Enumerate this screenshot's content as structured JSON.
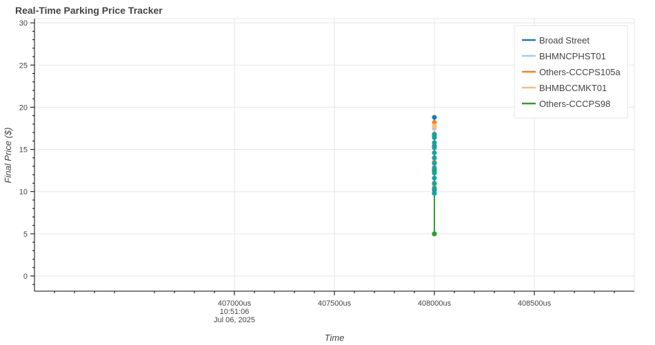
{
  "chart_data": {
    "type": "line",
    "title": "Real-Time Parking Price Tracker",
    "xlabel": "Time",
    "ylabel": "Final Price ($)",
    "xlim": [
      406000,
      409000
    ],
    "ylim": [
      -1.8,
      30.5
    ],
    "grid": true,
    "legend_position": "top-right",
    "x_ticks": [
      {
        "value": 407000,
        "lines": [
          "407000us",
          "10:51:06",
          "Jul 06, 2025"
        ]
      },
      {
        "value": 407500,
        "lines": [
          "407500us"
        ]
      },
      {
        "value": 408000,
        "lines": [
          "408000us"
        ]
      },
      {
        "value": 408500,
        "lines": [
          "408500us"
        ]
      }
    ],
    "y_ticks": [
      0,
      5,
      10,
      15,
      20,
      25,
      30
    ],
    "series": [
      {
        "name": "Broad Street",
        "color": "#1f77b4",
        "x": [
          408000,
          408000,
          408000,
          408000,
          408000
        ],
        "y": [
          5.0,
          10.2,
          12.6,
          15.4,
          18.8
        ]
      },
      {
        "name": "BHMNCPHST01",
        "color": "#aec7e8",
        "x": [
          408000,
          408000,
          408000
        ],
        "y": [
          10.5,
          13.2,
          17.5
        ]
      },
      {
        "name": "Others-CCCPS105a",
        "color": "#ff7f0e",
        "x": [
          408000,
          408000,
          408000
        ],
        "y": [
          10.8,
          14.0,
          18.2
        ]
      },
      {
        "name": "BHMBCCMKT01",
        "color": "#ffbb78",
        "x": [
          408000,
          408000,
          408000
        ],
        "y": [
          10.6,
          13.6,
          17.8
        ]
      },
      {
        "name": "Others-CCCPS98",
        "color": "#2ca02c",
        "x": [
          408000,
          408000,
          408000,
          408000
        ],
        "y": [
          5.0,
          9.8,
          12.4,
          16.6
        ]
      }
    ],
    "overlay_points": {
      "color": "#17a2a0",
      "x": 408000,
      "y": [
        9.8,
        10.4,
        11.0,
        11.6,
        12.2,
        12.8,
        13.4,
        14.0,
        14.6,
        15.2,
        15.8,
        16.4,
        16.8
      ]
    }
  }
}
